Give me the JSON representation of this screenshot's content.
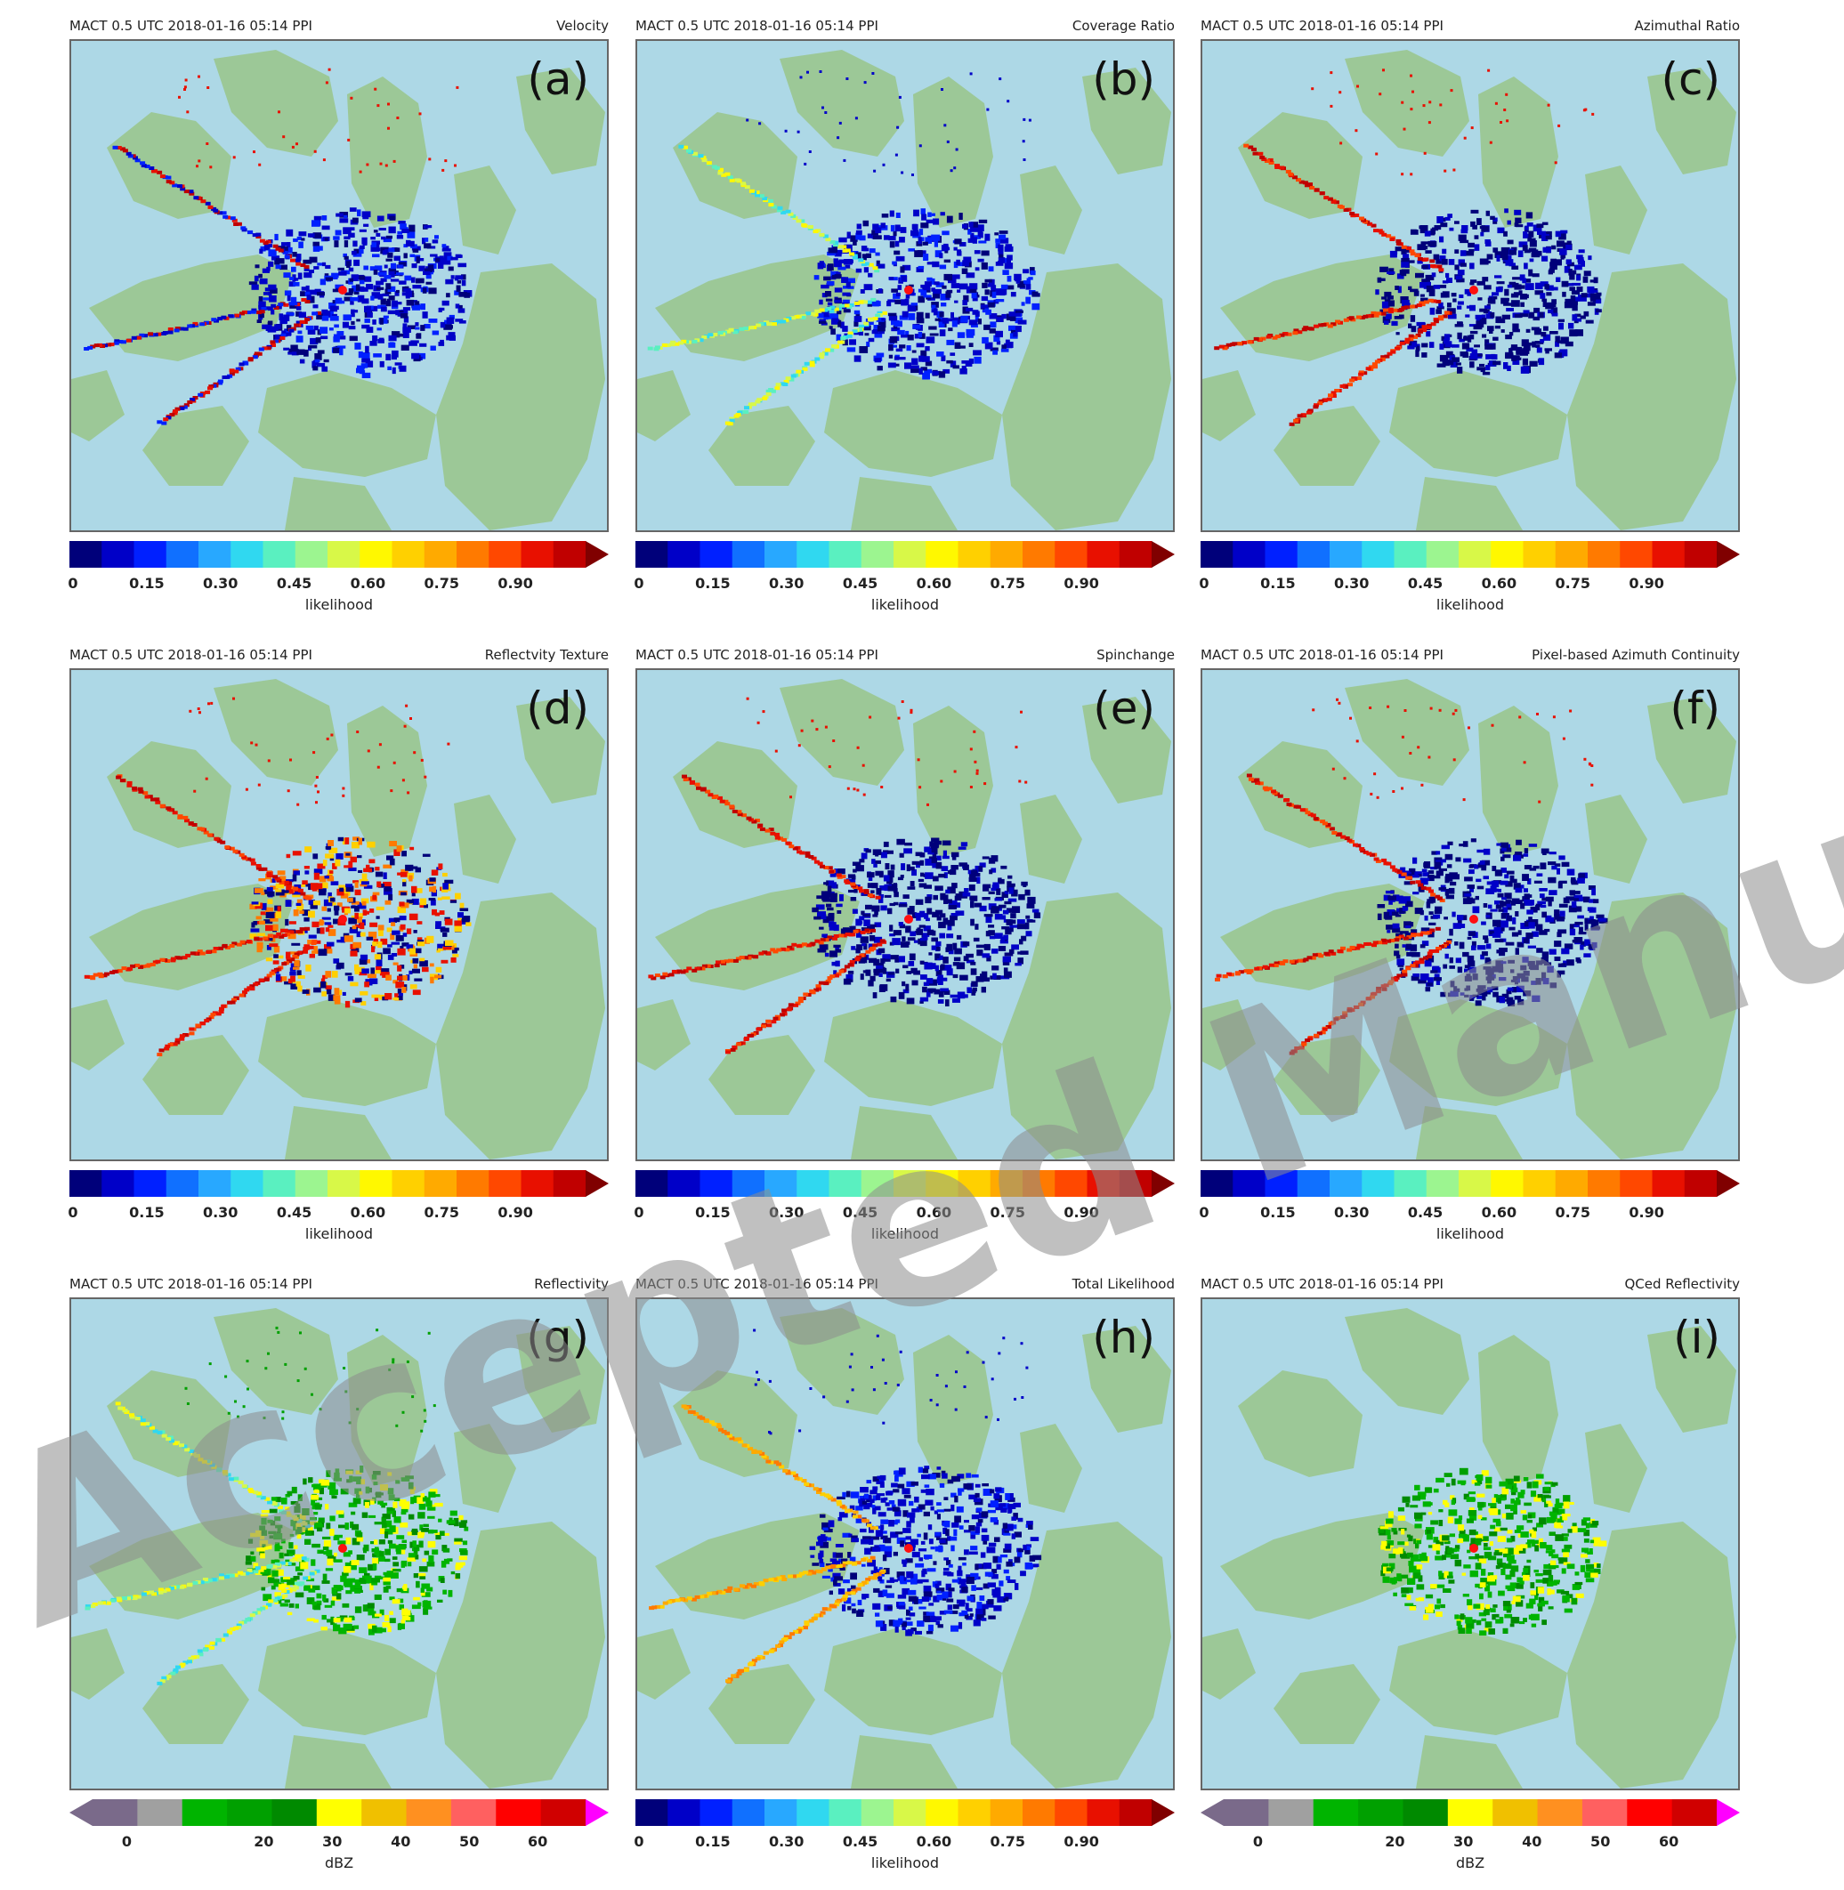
{
  "colors": {
    "ocean": "#add8e6",
    "land": "#9cc897",
    "likelihood_scale": [
      "#00007a",
      "#0000c8",
      "#0020ff",
      "#1070ff",
      "#28a8ff",
      "#30d8f0",
      "#5af0c0",
      "#9cf590",
      "#d8f848",
      "#fff800",
      "#ffd000",
      "#ffaa00",
      "#ff7a00",
      "#ff4800",
      "#e81000",
      "#c00000",
      "#800000"
    ],
    "dbz_scale": [
      "#7a6a8a",
      "#a0a0a0",
      "#00b400",
      "#00a000",
      "#008a00",
      "#ffff00",
      "#f0c000",
      "#ff9020",
      "#ff6060",
      "#ff0000",
      "#d00000",
      "#ff00ff"
    ],
    "watermark": "#8c8c8c"
  },
  "panels": [
    {
      "id": "a",
      "header_left": "MACT 0.5 UTC 2018-01-16 05:14 PPI",
      "header_right": "Velocity",
      "label": "(a)",
      "scale": "likelihood",
      "echo": "blue",
      "clutter": "mixed"
    },
    {
      "id": "b",
      "header_left": "MACT 0.5 UTC 2018-01-16 05:14 PPI",
      "header_right": "Coverage Ratio",
      "label": "(b)",
      "scale": "likelihood",
      "echo": "blue",
      "clutter": "yellow"
    },
    {
      "id": "c",
      "header_left": "MACT 0.5 UTC 2018-01-16 05:14 PPI",
      "header_right": "Azimuthal Ratio",
      "label": "(c)",
      "scale": "likelihood",
      "echo": "navy",
      "clutter": "red"
    },
    {
      "id": "d",
      "header_left": "MACT 0.5 UTC 2018-01-16 05:14 PPI",
      "header_right": "Reflectvity Texture",
      "label": "(d)",
      "scale": "likelihood",
      "echo": "mixed",
      "clutter": "red"
    },
    {
      "id": "e",
      "header_left": "MACT 0.5 UTC 2018-01-16 05:14 PPI",
      "header_right": "Spinchange",
      "label": "(e)",
      "scale": "likelihood",
      "echo": "navy",
      "clutter": "red"
    },
    {
      "id": "f",
      "header_left": "MACT 0.5 UTC 2018-01-16 05:14 PPI",
      "header_right": "Pixel-based Azimuth Continuity",
      "label": "(f)",
      "scale": "likelihood",
      "echo": "navy",
      "clutter": "red"
    },
    {
      "id": "g",
      "header_left": "MACT 0.5 UTC 2018-01-16 05:14 PPI",
      "header_right": "Reflectivity",
      "label": "(g)",
      "scale": "dbz",
      "echo": "green",
      "clutter": "yellow"
    },
    {
      "id": "h",
      "header_left": "MACT 0.5 UTC 2018-01-16 05:14 PPI",
      "header_right": "Total Likelihood",
      "label": "(h)",
      "scale": "likelihood",
      "echo": "blue",
      "clutter": "orange"
    },
    {
      "id": "i",
      "header_left": "MACT 0.5 UTC 2018-01-16 05:14 PPI",
      "header_right": "QCed Reflectivity",
      "label": "(i)",
      "scale": "dbz",
      "echo": "green",
      "clutter": "none"
    }
  ],
  "likelihood_ticks": [
    "0",
    "0.15",
    "0.30",
    "0.45",
    "0.60",
    "0.75",
    "0.90"
  ],
  "likelihood_tick_values": [
    0,
    0.15,
    0.3,
    0.45,
    0.6,
    0.75,
    0.9
  ],
  "likelihood_range": [
    0,
    1.05
  ],
  "likelihood_label": "likelihood",
  "dbz_ticks": [
    "0",
    "20",
    "30",
    "40",
    "50",
    "60"
  ],
  "dbz_tick_values": [
    0,
    20,
    30,
    40,
    50,
    60
  ],
  "dbz_range": [
    -5,
    67
  ],
  "dbz_label": "dBZ",
  "watermark_text": "Accepted Manuscript"
}
